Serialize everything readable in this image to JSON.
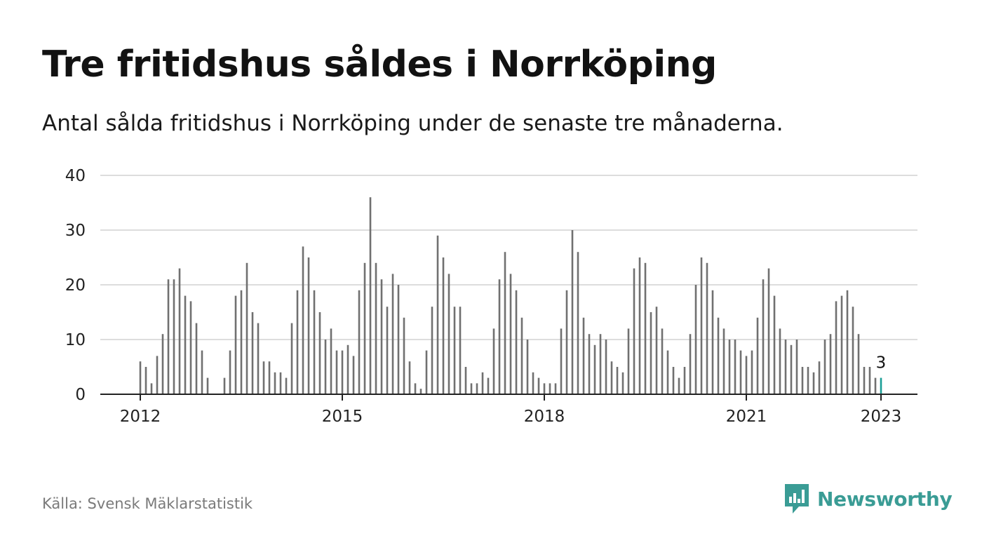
{
  "title": "Tre fritidshus såldes i Norrköping",
  "subtitle": "Antal sålda fritidshus i Norrköping under de senaste tre månaderna.",
  "source": "Källa: Svensk Mäklarstatistik",
  "brand": {
    "name": "Newsworthy",
    "icon": "newsworthy-logo-icon",
    "color": "#3a9c95"
  },
  "colors": {
    "bar": "#707070",
    "highlight": "#1a9e96",
    "grid": "#dddddd",
    "axis": "#222222"
  },
  "chart_data": {
    "type": "bar",
    "title": "Tre fritidshus såldes i Norrköping",
    "subtitle": "Antal sålda fritidshus i Norrköping under de senaste tre månaderna.",
    "xlabel": "",
    "ylabel": "",
    "ylim": [
      0,
      40
    ],
    "yticks": [
      "0",
      "10",
      "20",
      "30",
      "40"
    ],
    "xticks": [
      "2012",
      "2015",
      "2018",
      "2021",
      "2023"
    ],
    "start": "2012-01",
    "end": "2023-01",
    "frequency": "monthly",
    "grid": true,
    "highlight": {
      "index": 132,
      "label": "3"
    },
    "values": [
      6,
      5,
      2,
      7,
      11,
      21,
      21,
      23,
      18,
      17,
      13,
      8,
      3,
      0,
      0,
      3,
      8,
      18,
      19,
      24,
      15,
      13,
      6,
      6,
      4,
      4,
      3,
      13,
      19,
      27,
      25,
      19,
      15,
      10,
      12,
      8,
      8,
      9,
      7,
      19,
      24,
      36,
      24,
      21,
      16,
      22,
      20,
      14,
      6,
      2,
      1,
      8,
      16,
      29,
      25,
      22,
      16,
      16,
      5,
      2,
      2,
      4,
      3,
      12,
      21,
      26,
      22,
      19,
      14,
      10,
      4,
      3,
      2,
      2,
      2,
      12,
      19,
      30,
      26,
      14,
      11,
      9,
      11,
      10,
      6,
      5,
      4,
      12,
      23,
      25,
      24,
      15,
      16,
      12,
      8,
      5,
      3,
      5,
      11,
      20,
      25,
      24,
      19,
      14,
      12,
      10,
      10,
      8,
      7,
      8,
      14,
      21,
      23,
      18,
      12,
      10,
      9,
      10,
      5,
      5,
      4,
      6,
      10,
      11,
      17,
      18,
      19,
      16,
      11,
      5,
      5,
      3,
      3
    ]
  }
}
